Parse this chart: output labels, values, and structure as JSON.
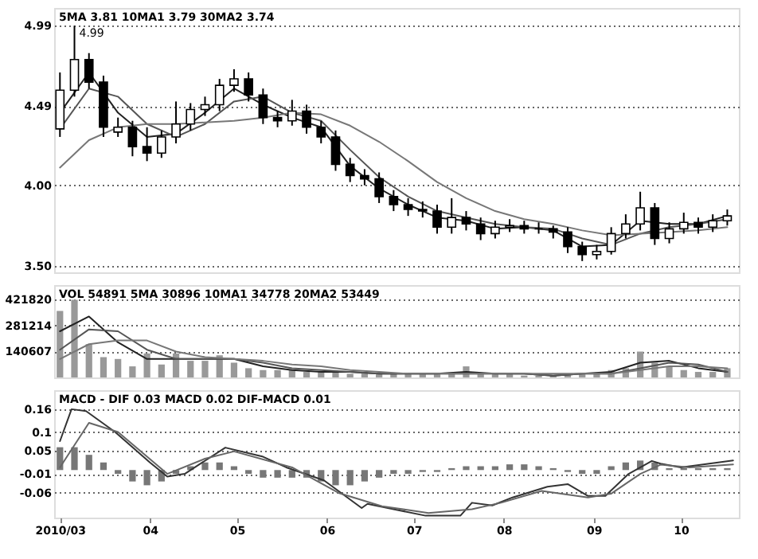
{
  "chart_data": [
    {
      "type": "candlestick",
      "title": "5MA 3.81 10MA1 3.79 30MA2 3.74",
      "x": [
        "2010-03-01",
        "2010-03-06",
        "2010-03-11",
        "2010-03-16",
        "2010-03-21",
        "2010-03-26",
        "2010-03-31",
        "2010-04-05",
        "2010-04-10",
        "2010-04-15",
        "2010-04-20",
        "2010-04-25",
        "2010-04-30",
        "2010-05-05",
        "2010-05-10",
        "2010-05-15",
        "2010-05-20",
        "2010-05-25",
        "2010-05-30",
        "2010-06-04",
        "2010-06-09",
        "2010-06-14",
        "2010-06-19",
        "2010-06-24",
        "2010-06-29",
        "2010-07-04",
        "2010-07-09",
        "2010-07-14",
        "2010-07-19",
        "2010-07-24",
        "2010-07-29",
        "2010-08-03",
        "2010-08-08",
        "2010-08-13",
        "2010-08-18",
        "2010-08-23",
        "2010-08-28",
        "2010-09-02",
        "2010-09-07",
        "2010-09-12",
        "2010-09-17",
        "2010-09-22",
        "2010-09-27",
        "2010-10-02",
        "2010-10-07",
        "2010-10-12",
        "2010-10-17"
      ],
      "ohlc": [
        [
          4.35,
          4.7,
          4.3,
          4.59
        ],
        [
          4.59,
          4.99,
          4.55,
          4.78
        ],
        [
          4.78,
          4.82,
          4.6,
          4.64
        ],
        [
          4.64,
          4.68,
          4.3,
          4.36
        ],
        [
          4.33,
          4.42,
          4.3,
          4.36
        ],
        [
          4.36,
          4.4,
          4.18,
          4.24
        ],
        [
          4.24,
          4.36,
          4.15,
          4.2
        ],
        [
          4.2,
          4.34,
          4.17,
          4.3
        ],
        [
          4.3,
          4.52,
          4.26,
          4.38
        ],
        [
          4.38,
          4.51,
          4.34,
          4.47
        ],
        [
          4.47,
          4.55,
          4.43,
          4.5
        ],
        [
          4.5,
          4.66,
          4.46,
          4.62
        ],
        [
          4.62,
          4.72,
          4.58,
          4.66
        ],
        [
          4.66,
          4.7,
          4.52,
          4.56
        ],
        [
          4.56,
          4.6,
          4.38,
          4.42
        ],
        [
          4.42,
          4.46,
          4.36,
          4.4
        ],
        [
          4.4,
          4.53,
          4.37,
          4.46
        ],
        [
          4.46,
          4.5,
          4.32,
          4.36
        ],
        [
          4.36,
          4.4,
          4.26,
          4.3
        ],
        [
          4.3,
          4.34,
          4.09,
          4.13
        ],
        [
          4.13,
          4.17,
          4.02,
          4.06
        ],
        [
          4.06,
          4.1,
          4.0,
          4.04
        ],
        [
          4.04,
          4.08,
          3.89,
          3.93
        ],
        [
          3.93,
          3.97,
          3.84,
          3.88
        ],
        [
          3.88,
          3.92,
          3.81,
          3.85
        ],
        [
          3.85,
          3.9,
          3.8,
          3.84
        ],
        [
          3.84,
          3.88,
          3.7,
          3.74
        ],
        [
          3.74,
          3.92,
          3.7,
          3.8
        ],
        [
          3.8,
          3.84,
          3.72,
          3.76
        ],
        [
          3.76,
          3.8,
          3.66,
          3.7
        ],
        [
          3.7,
          3.78,
          3.67,
          3.74
        ],
        [
          3.74,
          3.79,
          3.71,
          3.75
        ],
        [
          3.75,
          3.78,
          3.7,
          3.73
        ],
        [
          3.73,
          3.77,
          3.7,
          3.73
        ],
        [
          3.73,
          3.75,
          3.67,
          3.71
        ],
        [
          3.71,
          3.74,
          3.58,
          3.62
        ],
        [
          3.62,
          3.65,
          3.53,
          3.57
        ],
        [
          3.57,
          3.63,
          3.54,
          3.59
        ],
        [
          3.59,
          3.74,
          3.57,
          3.7
        ],
        [
          3.7,
          3.82,
          3.67,
          3.76
        ],
        [
          3.76,
          3.96,
          3.72,
          3.86
        ],
        [
          3.86,
          3.89,
          3.63,
          3.67
        ],
        [
          3.67,
          3.77,
          3.64,
          3.73
        ],
        [
          3.73,
          3.83,
          3.7,
          3.77
        ],
        [
          3.77,
          3.8,
          3.7,
          3.74
        ],
        [
          3.74,
          3.82,
          3.71,
          3.78
        ],
        [
          3.78,
          3.85,
          3.75,
          3.81
        ]
      ],
      "series": [
        {
          "type": "line",
          "color": "#222222",
          "x": [
            "2010-03-01",
            "2010-03-11",
            "2010-03-21",
            "2010-03-31",
            "2010-04-10",
            "2010-04-20",
            "2010-04-30",
            "2010-05-10",
            "2010-05-20",
            "2010-05-30",
            "2010-06-09",
            "2010-06-19",
            "2010-06-29",
            "2010-07-09",
            "2010-07-19",
            "2010-07-29",
            "2010-08-08",
            "2010-08-18",
            "2010-08-28",
            "2010-09-07",
            "2010-09-17",
            "2010-09-27",
            "2010-10-07",
            "2010-10-17"
          ],
          "values": [
            4.45,
            4.7,
            4.45,
            4.3,
            4.32,
            4.45,
            4.6,
            4.5,
            4.42,
            4.36,
            4.12,
            3.98,
            3.88,
            3.8,
            3.78,
            3.73,
            3.74,
            3.72,
            3.62,
            3.63,
            3.78,
            3.76,
            3.76,
            3.81
          ]
        },
        {
          "type": "line",
          "color": "#555555",
          "x": [
            "2010-03-01",
            "2010-03-11",
            "2010-03-21",
            "2010-03-31",
            "2010-04-10",
            "2010-04-20",
            "2010-04-30",
            "2010-05-10",
            "2010-05-20",
            "2010-05-30",
            "2010-06-09",
            "2010-06-19",
            "2010-06-29",
            "2010-07-09",
            "2010-07-19",
            "2010-07-29",
            "2010-08-08",
            "2010-08-18",
            "2010-08-28",
            "2010-09-07",
            "2010-09-17",
            "2010-09-27",
            "2010-10-07",
            "2010-10-17"
          ],
          "values": [
            4.35,
            4.6,
            4.55,
            4.38,
            4.3,
            4.38,
            4.52,
            4.55,
            4.45,
            4.4,
            4.22,
            4.05,
            3.93,
            3.84,
            3.8,
            3.76,
            3.74,
            3.73,
            3.67,
            3.63,
            3.7,
            3.74,
            3.76,
            3.79
          ]
        },
        {
          "type": "line",
          "color": "#777777",
          "x": [
            "2010-03-01",
            "2010-03-11",
            "2010-03-21",
            "2010-03-31",
            "2010-04-10",
            "2010-04-20",
            "2010-04-30",
            "2010-05-10",
            "2010-05-20",
            "2010-05-30",
            "2010-06-09",
            "2010-06-19",
            "2010-06-29",
            "2010-07-09",
            "2010-07-19",
            "2010-07-29",
            "2010-08-08",
            "2010-08-18",
            "2010-08-28",
            "2010-09-07",
            "2010-09-17",
            "2010-09-27",
            "2010-10-07",
            "2010-10-17"
          ],
          "values": [
            4.11,
            4.28,
            4.36,
            4.38,
            4.38,
            4.39,
            4.4,
            4.42,
            4.45,
            4.44,
            4.37,
            4.27,
            4.15,
            4.02,
            3.92,
            3.84,
            3.79,
            3.76,
            3.72,
            3.69,
            3.7,
            3.71,
            3.72,
            3.74
          ]
        }
      ],
      "xlim": [
        "2010-02-27",
        "2010-10-21"
      ],
      "ylim": [
        3.46,
        5.1
      ],
      "yticks": [
        4.99,
        4.49,
        {
          "value": 4.0,
          "label": "4.00"
        },
        {
          "value": 3.5,
          "label": "3.50"
        }
      ],
      "grid": "y",
      "tick_labels": "y",
      "annotations": [
        {
          "text": "4.99",
          "x": "2010-03-06",
          "y": 4.99
        }
      ]
    },
    {
      "type": "bar",
      "title": "VOL 54891 5MA 30896 10MA1 34778 20MA2 53449",
      "color": "#999999",
      "x": [
        "2010-03-01",
        "2010-03-06",
        "2010-03-11",
        "2010-03-16",
        "2010-03-21",
        "2010-03-26",
        "2010-03-31",
        "2010-04-05",
        "2010-04-10",
        "2010-04-15",
        "2010-04-20",
        "2010-04-25",
        "2010-04-30",
        "2010-05-05",
        "2010-05-10",
        "2010-05-15",
        "2010-05-20",
        "2010-05-25",
        "2010-05-30",
        "2010-06-04",
        "2010-06-09",
        "2010-06-14",
        "2010-06-19",
        "2010-06-24",
        "2010-06-29",
        "2010-07-04",
        "2010-07-09",
        "2010-07-14",
        "2010-07-19",
        "2010-07-24",
        "2010-07-29",
        "2010-08-03",
        "2010-08-08",
        "2010-08-13",
        "2010-08-18",
        "2010-08-23",
        "2010-08-28",
        "2010-09-02",
        "2010-09-07",
        "2010-09-12",
        "2010-09-17",
        "2010-09-22",
        "2010-09-27",
        "2010-10-02",
        "2010-10-07",
        "2010-10-12",
        "2010-10-17"
      ],
      "values": [
        360000,
        420000,
        180000,
        110000,
        100000,
        60000,
        130000,
        70000,
        130000,
        90000,
        90000,
        120000,
        80000,
        50000,
        40000,
        40000,
        40000,
        30000,
        30000,
        30000,
        20000,
        30000,
        20000,
        20000,
        20000,
        20000,
        20000,
        20000,
        60000,
        20000,
        20000,
        20000,
        10000,
        10000,
        10000,
        20000,
        20000,
        20000,
        40000,
        50000,
        140000,
        80000,
        60000,
        40000,
        30000,
        30000,
        50000
      ],
      "series": [
        {
          "type": "line",
          "color": "#222222",
          "x": [
            "2010-03-01",
            "2010-03-11",
            "2010-03-21",
            "2010-03-31",
            "2010-04-10",
            "2010-04-20",
            "2010-04-30",
            "2010-05-10",
            "2010-05-20",
            "2010-05-30",
            "2010-06-09",
            "2010-06-19",
            "2010-06-29",
            "2010-07-09",
            "2010-07-19",
            "2010-07-29",
            "2010-08-08",
            "2010-08-18",
            "2010-08-28",
            "2010-09-07",
            "2010-09-17",
            "2010-09-27",
            "2010-10-07",
            "2010-10-17"
          ],
          "values": [
            250000,
            330000,
            190000,
            100000,
            100000,
            100000,
            100000,
            60000,
            40000,
            30000,
            30000,
            20000,
            20000,
            20000,
            30000,
            20000,
            20000,
            10000,
            20000,
            30000,
            80000,
            90000,
            50000,
            30000
          ]
        },
        {
          "type": "line",
          "color": "#555555",
          "x": [
            "2010-03-01",
            "2010-03-11",
            "2010-03-21",
            "2010-03-31",
            "2010-04-10",
            "2010-04-20",
            "2010-04-30",
            "2010-05-10",
            "2010-05-20",
            "2010-05-30",
            "2010-06-09",
            "2010-06-19",
            "2010-06-29",
            "2010-07-09",
            "2010-07-19",
            "2010-07-29",
            "2010-08-08",
            "2010-08-18",
            "2010-08-28",
            "2010-09-07",
            "2010-09-17",
            "2010-09-27",
            "2010-10-07",
            "2010-10-17"
          ],
          "values": [
            150000,
            260000,
            250000,
            150000,
            100000,
            100000,
            100000,
            80000,
            50000,
            40000,
            30000,
            20000,
            20000,
            20000,
            20000,
            20000,
            20000,
            10000,
            20000,
            20000,
            50000,
            80000,
            70000,
            30000
          ]
        },
        {
          "type": "line",
          "color": "#777777",
          "x": [
            "2010-03-01",
            "2010-03-11",
            "2010-03-21",
            "2010-03-31",
            "2010-04-10",
            "2010-04-20",
            "2010-04-30",
            "2010-05-10",
            "2010-05-20",
            "2010-05-30",
            "2010-06-09",
            "2010-06-19",
            "2010-06-29",
            "2010-07-09",
            "2010-07-19",
            "2010-07-29",
            "2010-08-08",
            "2010-08-18",
            "2010-08-28",
            "2010-09-07",
            "2010-09-17",
            "2010-09-27",
            "2010-10-07",
            "2010-10-17"
          ],
          "values": [
            100000,
            180000,
            200000,
            200000,
            140000,
            110000,
            100000,
            90000,
            70000,
            60000,
            40000,
            30000,
            20000,
            20000,
            20000,
            20000,
            20000,
            20000,
            20000,
            20000,
            40000,
            60000,
            60000,
            50000
          ]
        }
      ],
      "xlim": [
        "2010-02-27",
        "2010-10-21"
      ],
      "ylim": [
        0,
        500000
      ],
      "yticks": [
        421820,
        281214,
        140607
      ],
      "grid": "y",
      "tick_labels": "y"
    },
    {
      "type": "line",
      "title": "MACD - DIF 0.03 MACD 0.02 DIF-MACD 0.01",
      "x": [
        "2010-03-01",
        "2010-03-06",
        "2010-03-11",
        "2010-03-16",
        "2010-03-21",
        "2010-03-26",
        "2010-03-31",
        "2010-04-05",
        "2010-04-10",
        "2010-04-15",
        "2010-04-20",
        "2010-04-25",
        "2010-04-30",
        "2010-05-05",
        "2010-05-10",
        "2010-05-15",
        "2010-05-20",
        "2010-05-25",
        "2010-05-30",
        "2010-06-04",
        "2010-06-09",
        "2010-06-14",
        "2010-06-19",
        "2010-06-24",
        "2010-06-29",
        "2010-07-04",
        "2010-07-09",
        "2010-07-14",
        "2010-07-19",
        "2010-07-24",
        "2010-07-29",
        "2010-08-03",
        "2010-08-08",
        "2010-08-13",
        "2010-08-18",
        "2010-08-23",
        "2010-08-28",
        "2010-09-02",
        "2010-09-07",
        "2010-09-12",
        "2010-09-17",
        "2010-09-22",
        "2010-09-27",
        "2010-10-02",
        "2010-10-07",
        "2010-10-12",
        "2010-10-17"
      ],
      "series": [
        {
          "type": "line",
          "color": "#333333",
          "x": [
            "2010-03-01",
            "2010-03-05",
            "2010-03-10",
            "2010-03-20",
            "2010-04-01",
            "2010-04-07",
            "2010-04-13",
            "2010-04-27",
            "2010-05-10",
            "2010-05-18",
            "2010-05-31",
            "2010-06-13",
            "2010-06-15",
            "2010-06-26",
            "2010-07-05",
            "2010-07-17",
            "2010-07-21",
            "2010-07-28",
            "2010-08-04",
            "2010-08-16",
            "2010-08-23",
            "2010-08-30",
            "2010-09-05",
            "2010-09-13",
            "2010-09-21",
            "2010-09-24",
            "2010-10-01",
            "2010-10-19"
          ],
          "values": [
            0.076,
            0.16,
            0.155,
            0.1,
            0.02,
            -0.017,
            -0.01,
            0.059,
            0.035,
            0.007,
            -0.027,
            -0.1,
            -0.089,
            -0.106,
            -0.12,
            -0.12,
            -0.086,
            -0.093,
            -0.072,
            -0.044,
            -0.037,
            -0.068,
            -0.068,
            -0.01,
            0.024,
            0.017,
            0.007,
            0.025
          ]
        },
        {
          "type": "line",
          "color": "#666666",
          "x": [
            "2010-03-01",
            "2010-03-11",
            "2010-03-21",
            "2010-04-07",
            "2010-04-20",
            "2010-04-30",
            "2010-05-20",
            "2010-06-05",
            "2010-06-20",
            "2010-07-06",
            "2010-07-21",
            "2010-07-31",
            "2010-08-14",
            "2010-08-30",
            "2010-09-07",
            "2010-09-17",
            "2010-09-24",
            "2010-10-04",
            "2010-10-19"
          ],
          "values": [
            0.007,
            0.124,
            0.1,
            -0.01,
            0.03,
            0.049,
            0.007,
            -0.06,
            -0.095,
            -0.113,
            -0.103,
            -0.086,
            -0.055,
            -0.072,
            -0.062,
            -0.01,
            0.014,
            0.007,
            0.015
          ]
        },
        {
          "type": "bar",
          "color": "#777777",
          "values": [
            0.06,
            0.06,
            0.04,
            0.02,
            -0.01,
            -0.03,
            -0.04,
            -0.03,
            -0.01,
            0.01,
            0.02,
            0.02,
            0.01,
            -0.01,
            -0.02,
            -0.02,
            -0.02,
            -0.02,
            -0.03,
            -0.04,
            -0.04,
            -0.03,
            -0.02,
            -0.01,
            -0.01,
            -0.005,
            -0.005,
            0.005,
            0.01,
            0.01,
            0.01,
            0.015,
            0.015,
            0.01,
            0.005,
            -0.005,
            -0.01,
            -0.01,
            0.01,
            0.02,
            0.025,
            0.02,
            0.005,
            0.005,
            0.005,
            0.005,
            0.005
          ]
        }
      ],
      "xlim": [
        "2010-02-27",
        "2010-10-21"
      ],
      "xticks": [
        {
          "value": "2010-03-01",
          "label": "2010/03"
        },
        {
          "value": "2010-04-01",
          "label": "04"
        },
        {
          "value": "2010-05-01",
          "label": "05"
        },
        {
          "value": "2010-06-01",
          "label": "06"
        },
        {
          "value": "2010-07-01",
          "label": "07"
        },
        {
          "value": "2010-08-01",
          "label": "08"
        },
        {
          "value": "2010-09-01",
          "label": "09"
        },
        {
          "value": "2010-10-01",
          "label": "10"
        }
      ],
      "ylim": [
        -0.125,
        0.21
      ],
      "yticks": [
        0.16,
        0.1,
        0.05,
        -0.01,
        -0.06
      ],
      "grid": "y"
    }
  ]
}
